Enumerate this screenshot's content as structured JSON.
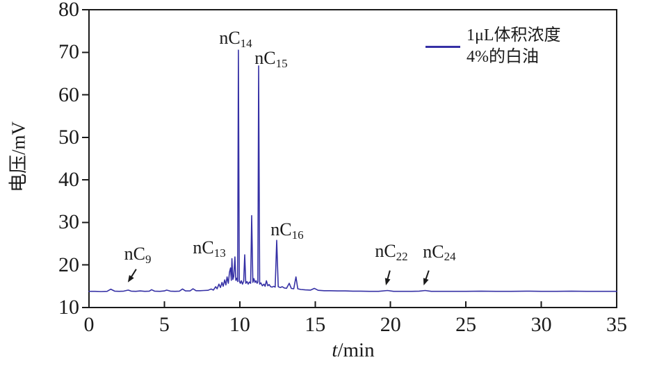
{
  "figure": {
    "y_axis_title": "电压/mV",
    "x_axis_title_var": "t",
    "x_axis_title_rest": "/min",
    "legend": {
      "line1": "1μL体积浓度",
      "line2": "4%的白油"
    }
  },
  "colors": {
    "trace": "#3530a5",
    "axis": "#1a1a1a",
    "text": "#1a1a1a"
  },
  "chart_data": {
    "type": "line",
    "title": "",
    "xlabel": "t/min",
    "ylabel": "电压/mV",
    "xlim": [
      0,
      35
    ],
    "ylim": [
      10,
      80
    ],
    "x_ticks": [
      0,
      5,
      10,
      15,
      20,
      25,
      30,
      35
    ],
    "y_ticks": [
      10,
      20,
      30,
      40,
      50,
      60,
      70,
      80
    ],
    "grid": false,
    "legend_position": "top-right",
    "baseline_mV": 13.8,
    "series": [
      {
        "name": "1μL体积浓度4%的白油",
        "color": "#3530a5",
        "points": [
          [
            0,
            13.8
          ],
          [
            0.4,
            13.8
          ],
          [
            0.8,
            13.75
          ],
          [
            1.2,
            13.8
          ],
          [
            1.45,
            14.3
          ],
          [
            1.7,
            13.85
          ],
          [
            2.0,
            13.8
          ],
          [
            2.3,
            13.85
          ],
          [
            2.6,
            14.1
          ],
          [
            2.8,
            13.85
          ],
          [
            3.1,
            13.8
          ],
          [
            3.4,
            13.9
          ],
          [
            3.7,
            13.8
          ],
          [
            4.0,
            13.85
          ],
          [
            4.15,
            14.2
          ],
          [
            4.35,
            13.85
          ],
          [
            4.7,
            13.8
          ],
          [
            5.0,
            13.9
          ],
          [
            5.15,
            14.1
          ],
          [
            5.4,
            13.85
          ],
          [
            5.7,
            13.8
          ],
          [
            6.0,
            13.85
          ],
          [
            6.2,
            14.35
          ],
          [
            6.4,
            13.9
          ],
          [
            6.7,
            13.9
          ],
          [
            6.9,
            14.4
          ],
          [
            7.1,
            13.95
          ],
          [
            7.35,
            13.95
          ],
          [
            7.6,
            14.0
          ],
          [
            7.9,
            14.05
          ],
          [
            8.1,
            14.35
          ],
          [
            8.25,
            14.1
          ],
          [
            8.4,
            14.9
          ],
          [
            8.5,
            14.4
          ],
          [
            8.62,
            15.5
          ],
          [
            8.72,
            14.7
          ],
          [
            8.82,
            15.9
          ],
          [
            8.9,
            15.0
          ],
          [
            9.0,
            16.5
          ],
          [
            9.08,
            15.3
          ],
          [
            9.16,
            17.2
          ],
          [
            9.24,
            15.7
          ],
          [
            9.32,
            18.3
          ],
          [
            9.39,
            19.3
          ],
          [
            9.44,
            16.4
          ],
          [
            9.48,
            21.5
          ],
          [
            9.54,
            16.6
          ],
          [
            9.6,
            17.3
          ],
          [
            9.68,
            21.9
          ],
          [
            9.74,
            16.4
          ],
          [
            9.8,
            16.9
          ],
          [
            9.86,
            16.1
          ],
          [
            9.91,
            70.5
          ],
          [
            9.97,
            16.2
          ],
          [
            10.04,
            15.7
          ],
          [
            10.1,
            16.3
          ],
          [
            10.18,
            15.5
          ],
          [
            10.26,
            16.2
          ],
          [
            10.33,
            22.4
          ],
          [
            10.4,
            15.7
          ],
          [
            10.48,
            16.1
          ],
          [
            10.56,
            15.5
          ],
          [
            10.64,
            16.0
          ],
          [
            10.72,
            15.7
          ],
          [
            10.79,
            31.6
          ],
          [
            10.87,
            15.9
          ],
          [
            10.94,
            16.8
          ],
          [
            11.01,
            15.9
          ],
          [
            11.08,
            16.3
          ],
          [
            11.15,
            15.7
          ],
          [
            11.2,
            16.0
          ],
          [
            11.25,
            66.8
          ],
          [
            11.32,
            15.5
          ],
          [
            11.4,
            15.8
          ],
          [
            11.5,
            15.1
          ],
          [
            11.6,
            15.5
          ],
          [
            11.68,
            15.0
          ],
          [
            11.77,
            16.3
          ],
          [
            11.86,
            15.1
          ],
          [
            11.95,
            15.4
          ],
          [
            12.05,
            14.9
          ],
          [
            12.15,
            14.8
          ],
          [
            12.25,
            15.0
          ],
          [
            12.35,
            14.8
          ],
          [
            12.45,
            25.8
          ],
          [
            12.55,
            14.9
          ],
          [
            12.68,
            14.7
          ],
          [
            12.82,
            14.9
          ],
          [
            12.95,
            14.6
          ],
          [
            13.1,
            14.5
          ],
          [
            13.28,
            15.7
          ],
          [
            13.42,
            14.5
          ],
          [
            13.58,
            14.4
          ],
          [
            13.73,
            17.2
          ],
          [
            13.85,
            14.4
          ],
          [
            14.05,
            14.25
          ],
          [
            14.35,
            14.15
          ],
          [
            14.7,
            14.1
          ],
          [
            14.95,
            14.5
          ],
          [
            15.2,
            14.05
          ],
          [
            15.6,
            13.95
          ],
          [
            16.0,
            13.95
          ],
          [
            16.5,
            13.9
          ],
          [
            17.0,
            13.9
          ],
          [
            17.5,
            13.85
          ],
          [
            18.0,
            13.85
          ],
          [
            18.6,
            13.8
          ],
          [
            19.2,
            13.8
          ],
          [
            19.8,
            14.0
          ],
          [
            20.2,
            13.8
          ],
          [
            20.8,
            13.8
          ],
          [
            21.4,
            13.8
          ],
          [
            21.9,
            13.85
          ],
          [
            22.3,
            14.0
          ],
          [
            22.7,
            13.8
          ],
          [
            23.3,
            13.8
          ],
          [
            24.0,
            13.8
          ],
          [
            25.0,
            13.8
          ],
          [
            26.0,
            13.85
          ],
          [
            27.0,
            13.8
          ],
          [
            28.0,
            13.8
          ],
          [
            29.0,
            13.85
          ],
          [
            30.0,
            13.8
          ],
          [
            31.0,
            13.8
          ],
          [
            32.0,
            13.85
          ],
          [
            33.0,
            13.8
          ],
          [
            34.0,
            13.8
          ],
          [
            35.0,
            13.8
          ]
        ]
      }
    ],
    "peak_annotations": [
      {
        "main": "nC",
        "sub": "9",
        "t": 3.23,
        "v": 22.6,
        "arrow": {
          "from": [
            3.13,
            19.0
          ],
          "to": [
            2.58,
            15.9
          ]
        }
      },
      {
        "main": "nC",
        "sub": "13",
        "t": 7.98,
        "v": 24.0,
        "arrow": null
      },
      {
        "main": "nC",
        "sub": "14",
        "t": 9.73,
        "v": 73.3,
        "arrow": null
      },
      {
        "main": "nC",
        "sub": "15",
        "t": 12.08,
        "v": 68.6,
        "arrow": null
      },
      {
        "main": "nC",
        "sub": "16",
        "t": 13.14,
        "v": 28.3,
        "arrow": null
      },
      {
        "main": "nC",
        "sub": "22",
        "t": 20.06,
        "v": 23.2,
        "arrow": {
          "from": [
            19.96,
            18.7
          ],
          "to": [
            19.69,
            15.2
          ]
        }
      },
      {
        "main": "nC",
        "sub": "24",
        "t": 23.24,
        "v": 23.1,
        "arrow": {
          "from": [
            22.54,
            18.7
          ],
          "to": [
            22.2,
            15.2
          ]
        }
      }
    ]
  }
}
